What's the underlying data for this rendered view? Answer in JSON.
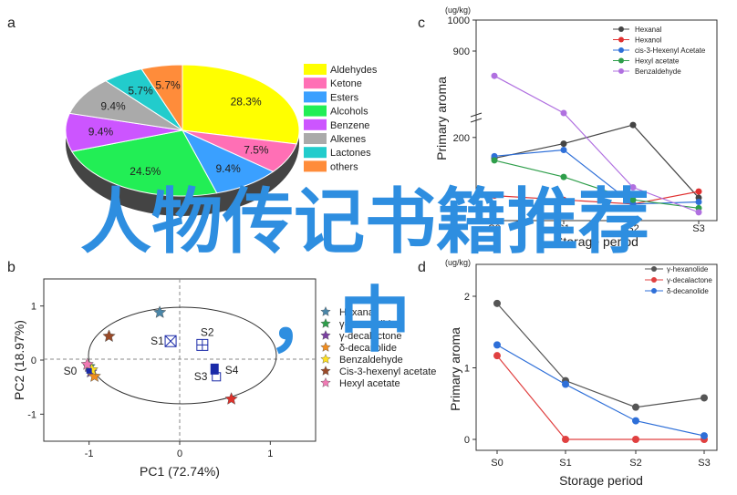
{
  "panels": {
    "a": "a",
    "b": "b",
    "c": "c",
    "d": "d"
  },
  "overlay": {
    "line1": "人物传记书籍推荐",
    "line2": "，中"
  },
  "chart_data": [
    {
      "type": "pie",
      "panel": "a",
      "slices": [
        {
          "label": "Aldehydes",
          "value": 28.3,
          "text": "28.3%",
          "color": "#ffff00"
        },
        {
          "label": "Ketone",
          "value": 7.5,
          "text": "7.5%",
          "color": "#ff6fb5"
        },
        {
          "label": "Esters",
          "value": 9.4,
          "text": "9.4%",
          "color": "#3aa0ff"
        },
        {
          "label": "Alcohols",
          "value": 24.5,
          "text": "24.5%",
          "color": "#22ee55"
        },
        {
          "label": "Benzene",
          "value": 9.4,
          "text": "9.4%",
          "color": "#cc55ff"
        },
        {
          "label": "Alkenes",
          "value": 9.4,
          "text": "9.4%",
          "color": "#aaaaaa"
        },
        {
          "label": "Lactones",
          "value": 5.7,
          "text": "5.7%",
          "color": "#22cccc"
        },
        {
          "label": "others",
          "value": 5.7,
          "text": "5.7%",
          "color": "#ff8c3a"
        }
      ]
    },
    {
      "type": "scatter",
      "panel": "b",
      "xlabel": "PC1 (72.74%)",
      "ylabel": "PC2 (18.97%)",
      "xlim": [
        -1.5,
        1.5
      ],
      "ylim": [
        -1.5,
        1.5
      ],
      "xticks": [
        "-1",
        "0",
        "1"
      ],
      "yticks": [
        "1",
        "0",
        "-1"
      ],
      "samples": [
        {
          "label": "S0",
          "x": -1.0,
          "y": -0.2,
          "marker": "S0"
        },
        {
          "label": "S1",
          "x": -0.1,
          "y": 0.35,
          "marker": "boxx"
        },
        {
          "label": "S2",
          "x": 0.25,
          "y": 0.28,
          "marker": "boxplus"
        },
        {
          "label": "S3",
          "x": 0.4,
          "y": -0.3,
          "marker": "open"
        },
        {
          "label": "S4",
          "x": 0.4,
          "y": -0.2,
          "marker": "filled"
        }
      ],
      "series": [
        {
          "name": "Hexanal",
          "x": -0.22,
          "y": 0.88,
          "color": "#4a86a8"
        },
        {
          "name": "γ-hexanolide",
          "x": -1.0,
          "y": -0.12,
          "color": "#2e9e4a"
        },
        {
          "name": "γ-decalactone",
          "x": -0.98,
          "y": -0.22,
          "color": "#7a3fa0"
        },
        {
          "name": "δ-decanolide",
          "x": -0.94,
          "y": -0.3,
          "color": "#f08c1e"
        },
        {
          "name": "Benzaldehyde",
          "x": -0.97,
          "y": -0.18,
          "color": "#ffe01e"
        },
        {
          "name": "Cis-3-hexenyl acetate",
          "x": -0.78,
          "y": 0.44,
          "color": "#9a4a28"
        },
        {
          "name": "Hexyl acetate",
          "x": -1.02,
          "y": -0.08,
          "color": "#f07ab4"
        },
        {
          "name": "",
          "x": 0.57,
          "y": -0.72,
          "color": "#e0302a"
        }
      ]
    },
    {
      "type": "line",
      "panel": "c",
      "unit": "(ug/kg)",
      "ylabel": "Primary aroma",
      "xlabel": "Storage period",
      "categories": [
        "S0",
        "S1",
        "S2",
        "S3"
      ],
      "yticks": [
        "1000",
        "900",
        "200"
      ],
      "series": [
        {
          "name": "Hexanal",
          "color": "#444444",
          "values": [
            150,
            185,
            230,
            55
          ]
        },
        {
          "name": "Hexanol",
          "color": "#e03030",
          "values": [
            60,
            50,
            40,
            70
          ]
        },
        {
          "name": "cis-3-Hexenyl Acetate",
          "color": "#2e6fd8",
          "values": [
            155,
            170,
            40,
            45
          ]
        },
        {
          "name": "Hexyl acetate",
          "color": "#2e9e4a",
          "values": [
            145,
            105,
            50,
            30
          ]
        },
        {
          "name": "Benzaldehyde",
          "color": "#b070e0",
          "values": [
            820,
            700,
            80,
            20
          ]
        }
      ]
    },
    {
      "type": "line",
      "panel": "d",
      "unit": "(ug/kg)",
      "ylabel": "Primary aroma",
      "xlabel": "Storage period",
      "categories": [
        "S0",
        "S1",
        "S2",
        "S3"
      ],
      "ylim": [
        0,
        2.5
      ],
      "yticks": [
        "0",
        "1",
        "2"
      ],
      "series": [
        {
          "name": "γ-hexanolide",
          "color": "#555555",
          "values": [
            1.9,
            0.82,
            0.45,
            0.58
          ]
        },
        {
          "name": "γ-decalactone",
          "color": "#e04040",
          "values": [
            1.17,
            0.0,
            0.0,
            0.0
          ]
        },
        {
          "name": "δ-decanolide",
          "color": "#2e6fd8",
          "values": [
            1.32,
            0.77,
            0.26,
            0.05
          ]
        }
      ]
    }
  ]
}
